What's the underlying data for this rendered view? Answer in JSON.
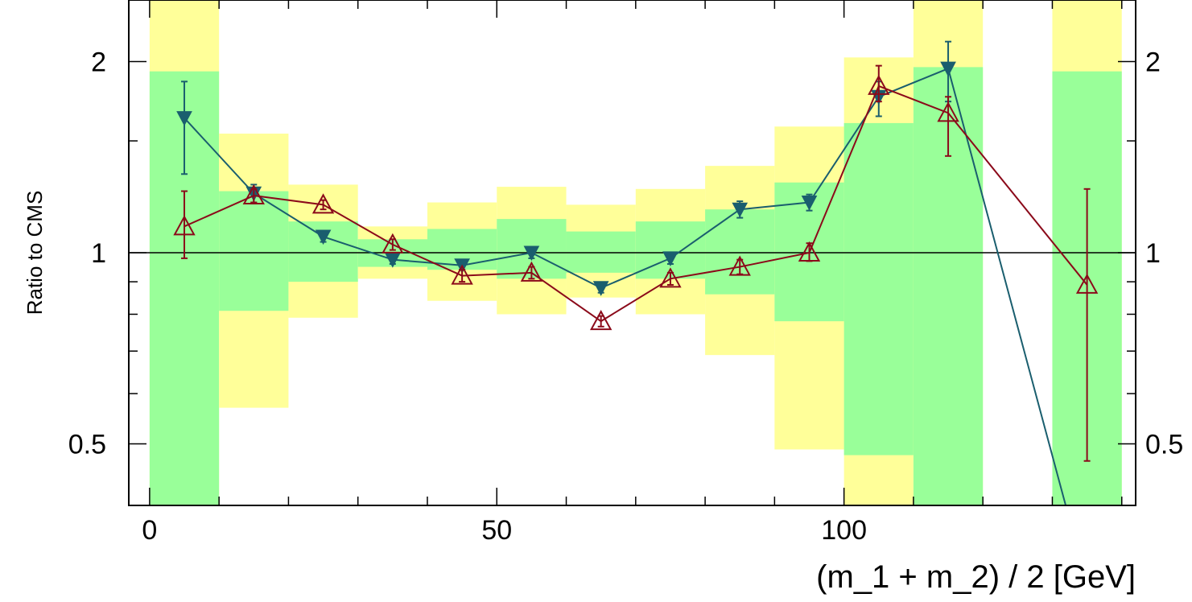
{
  "chart_data": {
    "type": "line",
    "title": "",
    "xlabel": "(m_1 + m_2) / 2 [GeV]",
    "ylabel": "Ratio to CMS",
    "xlim": [
      -3,
      142
    ],
    "ylim": [
      0.4,
      2.5
    ],
    "yscale": "log",
    "grid": false,
    "x_ticks": [
      {
        "value": 0,
        "label": "0"
      },
      {
        "value": 50,
        "label": "50"
      },
      {
        "value": 100,
        "label": "100"
      }
    ],
    "y_ticks": [
      {
        "value": 0.5,
        "label": "0.5"
      },
      {
        "value": 1,
        "label": "1"
      },
      {
        "value": 2,
        "label": "2"
      }
    ],
    "y_ticks_right": [
      {
        "value": 0.5,
        "label": "0.5"
      },
      {
        "value": 1,
        "label": "1"
      },
      {
        "value": 2,
        "label": "2"
      }
    ],
    "reference_line": 1,
    "bands": [
      {
        "x0": 0,
        "x1": 10,
        "yellow": [
          0.4,
          2.5
        ],
        "green": [
          0.4,
          1.93
        ]
      },
      {
        "x0": 10,
        "x1": 20,
        "yellow": [
          0.57,
          1.54
        ],
        "green": [
          0.81,
          1.25
        ]
      },
      {
        "x0": 20,
        "x1": 30,
        "yellow": [
          0.79,
          1.28
        ],
        "green": [
          0.9,
          1.12
        ]
      },
      {
        "x0": 30,
        "x1": 40,
        "yellow": [
          0.91,
          1.1
        ],
        "green": [
          0.95,
          1.05
        ]
      },
      {
        "x0": 40,
        "x1": 50,
        "yellow": [
          0.84,
          1.2
        ],
        "green": [
          0.94,
          1.09
        ]
      },
      {
        "x0": 50,
        "x1": 60,
        "yellow": [
          0.8,
          1.27
        ],
        "green": [
          0.91,
          1.13
        ]
      },
      {
        "x0": 60,
        "x1": 70,
        "yellow": [
          0.85,
          1.19
        ],
        "green": [
          0.93,
          1.08
        ]
      },
      {
        "x0": 70,
        "x1": 80,
        "yellow": [
          0.8,
          1.26
        ],
        "green": [
          0.91,
          1.12
        ]
      },
      {
        "x0": 80,
        "x1": 90,
        "yellow": [
          0.69,
          1.37
        ],
        "green": [
          0.86,
          1.17
        ]
      },
      {
        "x0": 90,
        "x1": 100,
        "yellow": [
          0.49,
          1.58
        ],
        "green": [
          0.78,
          1.29
        ]
      },
      {
        "x0": 100,
        "x1": 110,
        "yellow": [
          0.4,
          2.03
        ],
        "green": [
          0.48,
          1.6
        ]
      },
      {
        "x0": 110,
        "x1": 120,
        "yellow": [
          0.4,
          2.5
        ],
        "green": [
          0.4,
          1.96
        ]
      },
      {
        "x0": 130,
        "x1": 140,
        "yellow": [
          0.4,
          2.5
        ],
        "green": [
          0.4,
          1.93
        ]
      }
    ],
    "series": [
      {
        "color": "#1a5e6e",
        "marker": "filled-triangle-down",
        "x": [
          5,
          15,
          25,
          35,
          45,
          55,
          65,
          75,
          85,
          95,
          105,
          115,
          135
        ],
        "y": [
          1.63,
          1.24,
          1.06,
          0.975,
          0.955,
          1.0,
          0.88,
          0.98,
          1.17,
          1.2,
          1.76,
          1.95,
          0.3
        ],
        "err_low": [
          0.3,
          0.04,
          0.02,
          0.015,
          0.015,
          0.02,
          0.015,
          0.02,
          0.035,
          0.035,
          0.12,
          0.22,
          0
        ],
        "err_high": [
          0.23,
          0.04,
          0.02,
          0.015,
          0.015,
          0.02,
          0.015,
          0.02,
          0.035,
          0.035,
          0.1,
          0.2,
          0
        ]
      },
      {
        "color": "#8b0a1a",
        "marker": "open-triangle-up",
        "x": [
          5,
          15,
          25,
          35,
          45,
          55,
          65,
          75,
          85,
          95,
          105,
          115,
          135
        ],
        "y": [
          1.1,
          1.23,
          1.19,
          1.03,
          0.92,
          0.93,
          0.78,
          0.91,
          0.95,
          1.0,
          1.83,
          1.66,
          0.89
        ],
        "err_low": [
          0.12,
          0.03,
          0.02,
          0.02,
          0.02,
          0.02,
          0.015,
          0.02,
          0.025,
          0.03,
          0.1,
          0.24,
          0.42
        ],
        "err_high": [
          0.15,
          0.03,
          0.02,
          0.02,
          0.02,
          0.02,
          0.015,
          0.02,
          0.025,
          0.035,
          0.14,
          0.1,
          0.37
        ]
      }
    ]
  }
}
